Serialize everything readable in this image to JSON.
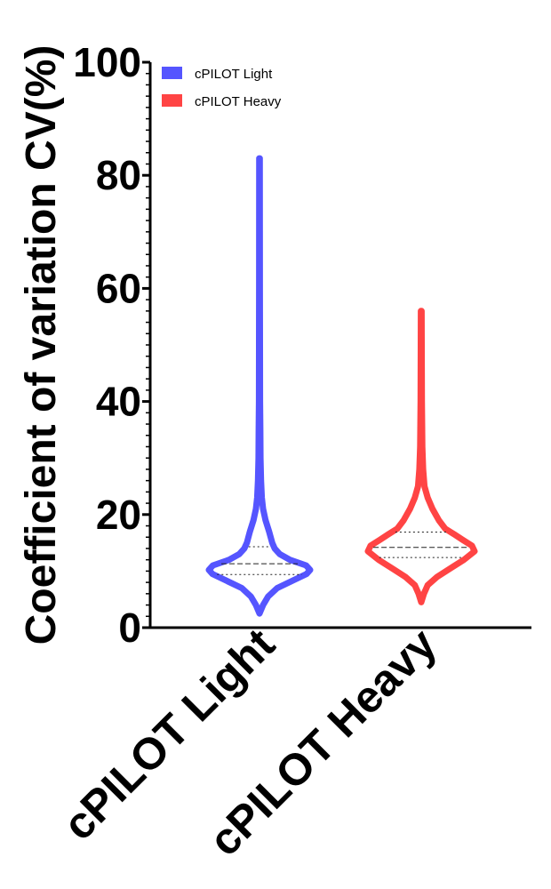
{
  "chart_data": {
    "type": "violin",
    "ylabel": "Coefficient of variation CV(%)",
    "ylim": [
      0,
      100
    ],
    "yticks": [
      0,
      20,
      40,
      60,
      80,
      100
    ],
    "categories": [
      "cPILOT Light",
      "cPILOT Heavy"
    ],
    "legend_position": "top-left",
    "series": [
      {
        "name": "cPILOT Light",
        "color": "#5555ff",
        "min": 2.5,
        "max": 83,
        "q1": 9.4,
        "median": 11.3,
        "q3": 14.3,
        "density": [
          [
            2.5,
            0.0
          ],
          [
            4,
            0.07
          ],
          [
            5.5,
            0.17
          ],
          [
            7,
            0.35
          ],
          [
            8.5,
            0.7
          ],
          [
            9.5,
            0.93
          ],
          [
            10.2,
            1.0
          ],
          [
            11,
            0.92
          ],
          [
            12,
            0.6
          ],
          [
            13,
            0.4
          ],
          [
            14,
            0.3
          ],
          [
            15,
            0.25
          ],
          [
            17,
            0.19
          ],
          [
            19,
            0.12
          ],
          [
            21,
            0.07
          ],
          [
            23,
            0.045
          ],
          [
            26,
            0.03
          ],
          [
            30,
            0.02
          ],
          [
            35,
            0.015
          ],
          [
            40,
            0.01
          ],
          [
            50,
            0.008
          ],
          [
            60,
            0.007
          ],
          [
            83,
            0.006
          ]
        ]
      },
      {
        "name": "cPILOT Heavy",
        "color": "#ff4444",
        "min": 4.5,
        "max": 56,
        "q1": 12.4,
        "median": 14.2,
        "q3": 16.9,
        "density": [
          [
            4.5,
            0.0
          ],
          [
            6,
            0.05
          ],
          [
            7.5,
            0.12
          ],
          [
            9,
            0.3
          ],
          [
            10.5,
            0.55
          ],
          [
            12,
            0.8
          ],
          [
            13.5,
            1.0
          ],
          [
            14.5,
            0.95
          ],
          [
            15.5,
            0.78
          ],
          [
            16.5,
            0.62
          ],
          [
            17.5,
            0.45
          ],
          [
            19,
            0.33
          ],
          [
            21,
            0.21
          ],
          [
            23,
            0.12
          ],
          [
            25,
            0.06
          ],
          [
            28,
            0.035
          ],
          [
            32,
            0.02
          ],
          [
            40,
            0.012
          ],
          [
            50,
            0.008
          ],
          [
            56,
            0.006
          ]
        ]
      }
    ]
  }
}
